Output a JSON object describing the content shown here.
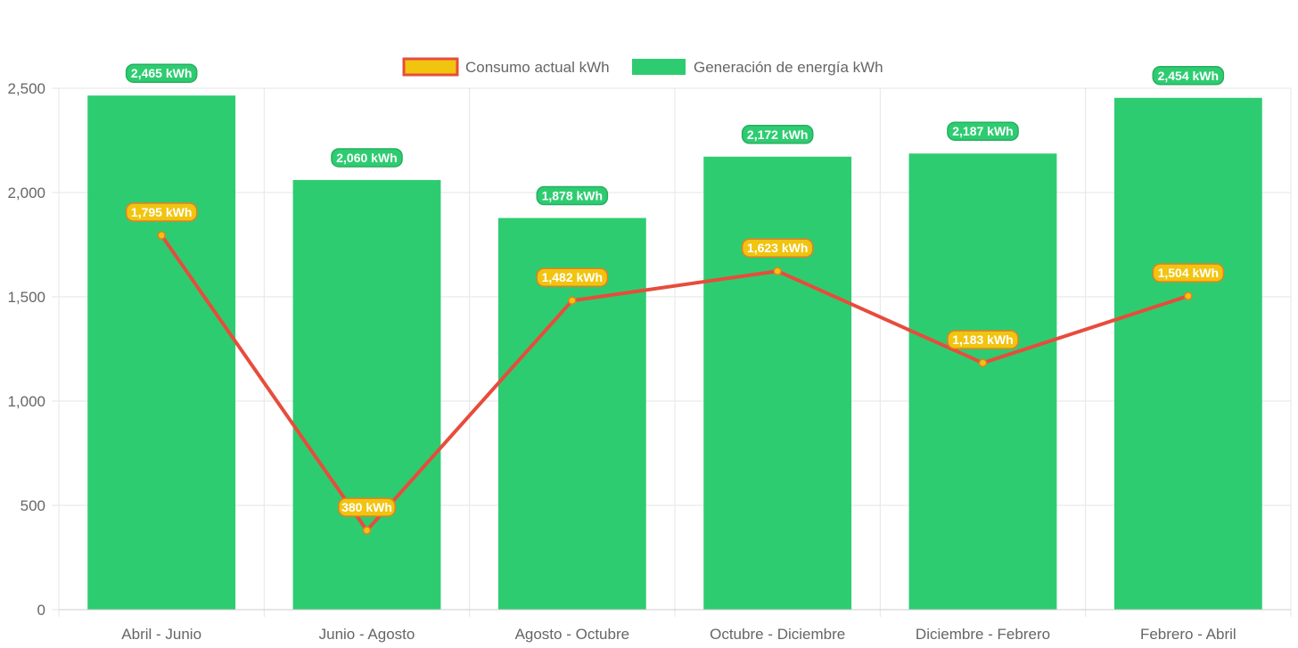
{
  "chart_data": {
    "type": "bar",
    "categories": [
      "Abril - Junio",
      "Junio - Agosto",
      "Agosto - Octubre",
      "Octubre - Diciembre",
      "Diciembre - Febrero",
      "Febrero - Abril"
    ],
    "series": [
      {
        "name": "Consumo actual kWh",
        "type": "line",
        "values": [
          1795,
          380,
          1482,
          1623,
          1183,
          1504
        ],
        "labels": [
          "1,795 kWh",
          "380 kWh",
          "1,482 kWh",
          "1,623 kWh",
          "1,183 kWh",
          "1,504 kWh"
        ],
        "color": "#e74c3c",
        "fill_color": "#f1c40f"
      },
      {
        "name": "Generación de energía kWh",
        "type": "bar",
        "values": [
          2465,
          2060,
          1878,
          2172,
          2187,
          2454
        ],
        "labels": [
          "2,465 kWh",
          "2,060 kWh",
          "1,878 kWh",
          "2,172 kWh",
          "2,187 kWh",
          "2,454 kWh"
        ],
        "color": "#2ecc71"
      }
    ],
    "ylim": [
      0,
      2500
    ],
    "yticks": [
      0,
      500,
      1000,
      1500,
      2000,
      2500
    ],
    "ytick_labels": [
      "0",
      "500",
      "1,000",
      "1,500",
      "2,000",
      "2,500"
    ],
    "grid": true,
    "legend": "top-center",
    "colors": {
      "grid": "#e5e5e5",
      "axis": "#cccccc",
      "tick_text": "#666666",
      "bar_label_bg": "#2ecc71",
      "bar_label_border": "#27ae60",
      "line_label_bg": "#f1c40f",
      "line_label_border": "#e67e22"
    }
  }
}
